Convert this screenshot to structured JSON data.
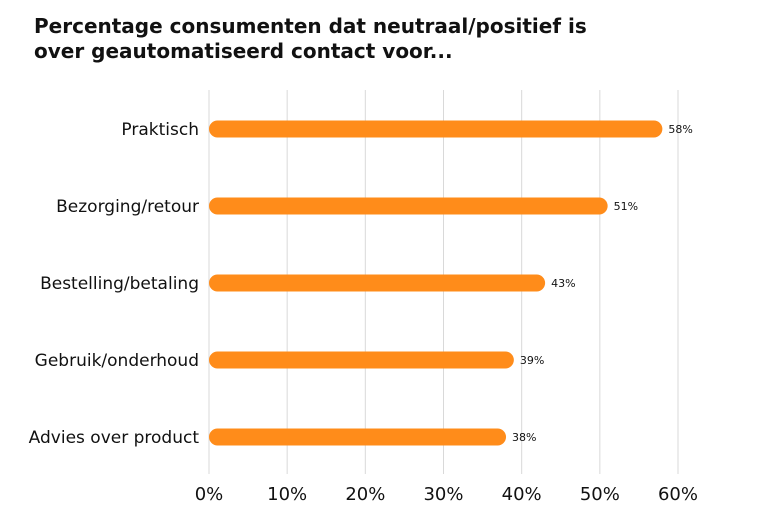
{
  "chart_data": {
    "type": "bar",
    "orientation": "horizontal",
    "title_lines": [
      "Percentage consumenten dat neutraal/positief is",
      "over geautomatiseerd contact voor..."
    ],
    "categories": [
      "Praktisch",
      "Bezorging/retour",
      "Bestelling/betaling",
      "Gebruik/onderhoud",
      "Advies over product"
    ],
    "values": [
      58,
      51,
      43,
      39,
      38
    ],
    "value_labels": [
      "58%",
      "51%",
      "43%",
      "39%",
      "38%"
    ],
    "xlim": [
      0,
      60
    ],
    "xticks": [
      0,
      10,
      20,
      30,
      40,
      50,
      60
    ],
    "xtick_labels": [
      "0%",
      "10%",
      "20%",
      "30%",
      "40%",
      "50%",
      "60%"
    ],
    "grid": true,
    "legend": "none",
    "colors": {
      "bar": "#ff8c1a",
      "grid": "#d9d9d9",
      "text": "#111111"
    }
  }
}
